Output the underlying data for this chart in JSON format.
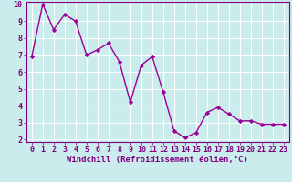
{
  "x": [
    0,
    1,
    2,
    3,
    4,
    5,
    6,
    7,
    8,
    9,
    10,
    11,
    12,
    13,
    14,
    15,
    16,
    17,
    18,
    19,
    20,
    21,
    22,
    23
  ],
  "y": [
    6.9,
    10.0,
    8.5,
    9.4,
    9.0,
    7.0,
    7.3,
    7.7,
    6.6,
    4.2,
    6.4,
    6.9,
    4.8,
    2.5,
    2.1,
    2.4,
    3.6,
    3.9,
    3.5,
    3.1,
    3.1,
    2.9,
    2.9,
    2.9
  ],
  "line_color": "#990099",
  "marker": "D",
  "marker_size": 2.2,
  "bg_color": "#cbecec",
  "grid_color": "#ffffff",
  "xlabel": "Windchill (Refroidissement éolien,°C)",
  "ylim": [
    2,
    10
  ],
  "xlim": [
    -0.5,
    23.5
  ],
  "yticks": [
    2,
    3,
    4,
    5,
    6,
    7,
    8,
    9,
    10
  ],
  "xticks": [
    0,
    1,
    2,
    3,
    4,
    5,
    6,
    7,
    8,
    9,
    10,
    11,
    12,
    13,
    14,
    15,
    16,
    17,
    18,
    19,
    20,
    21,
    22,
    23
  ],
  "xlabel_fontsize": 6.5,
  "tick_fontsize": 6.0,
  "label_color": "#800080",
  "spine_color": "#800080",
  "tick_color": "#800080",
  "line_width": 1.0
}
